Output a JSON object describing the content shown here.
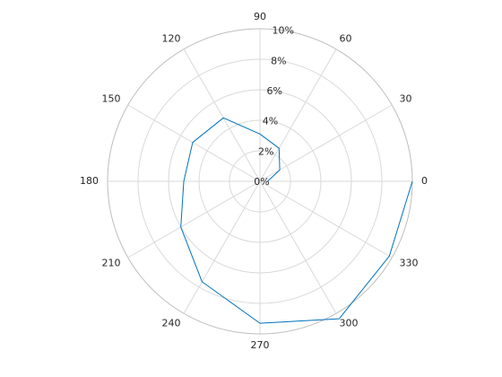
{
  "chart_data": {
    "type": "line",
    "subtype": "polar",
    "title": "",
    "angle_unit": "degrees",
    "theta_ticks": [
      0,
      30,
      60,
      90,
      120,
      150,
      180,
      210,
      240,
      270,
      300,
      330
    ],
    "theta_tick_labels": [
      "0",
      "30",
      "60",
      "90",
      "120",
      "150",
      "180",
      "210",
      "240",
      "270",
      "300",
      "330"
    ],
    "r_ticks": [
      0,
      2,
      4,
      6,
      8,
      10
    ],
    "r_tick_labels": [
      "0%",
      "2%",
      "4%",
      "6%",
      "8%",
      "10%"
    ],
    "rlim": [
      0,
      10
    ],
    "grid": true,
    "series": [
      {
        "color": "#0072bd",
        "theta": [
          0,
          30,
          60,
          90,
          120,
          150,
          180,
          210,
          240,
          270,
          300,
          330,
          0
        ],
        "r": [
          0.5,
          1.5,
          2.5,
          3.1,
          4.8,
          5.1,
          5.0,
          6.0,
          7.6,
          9.3,
          10.4,
          9.8,
          10.0
        ]
      }
    ]
  }
}
